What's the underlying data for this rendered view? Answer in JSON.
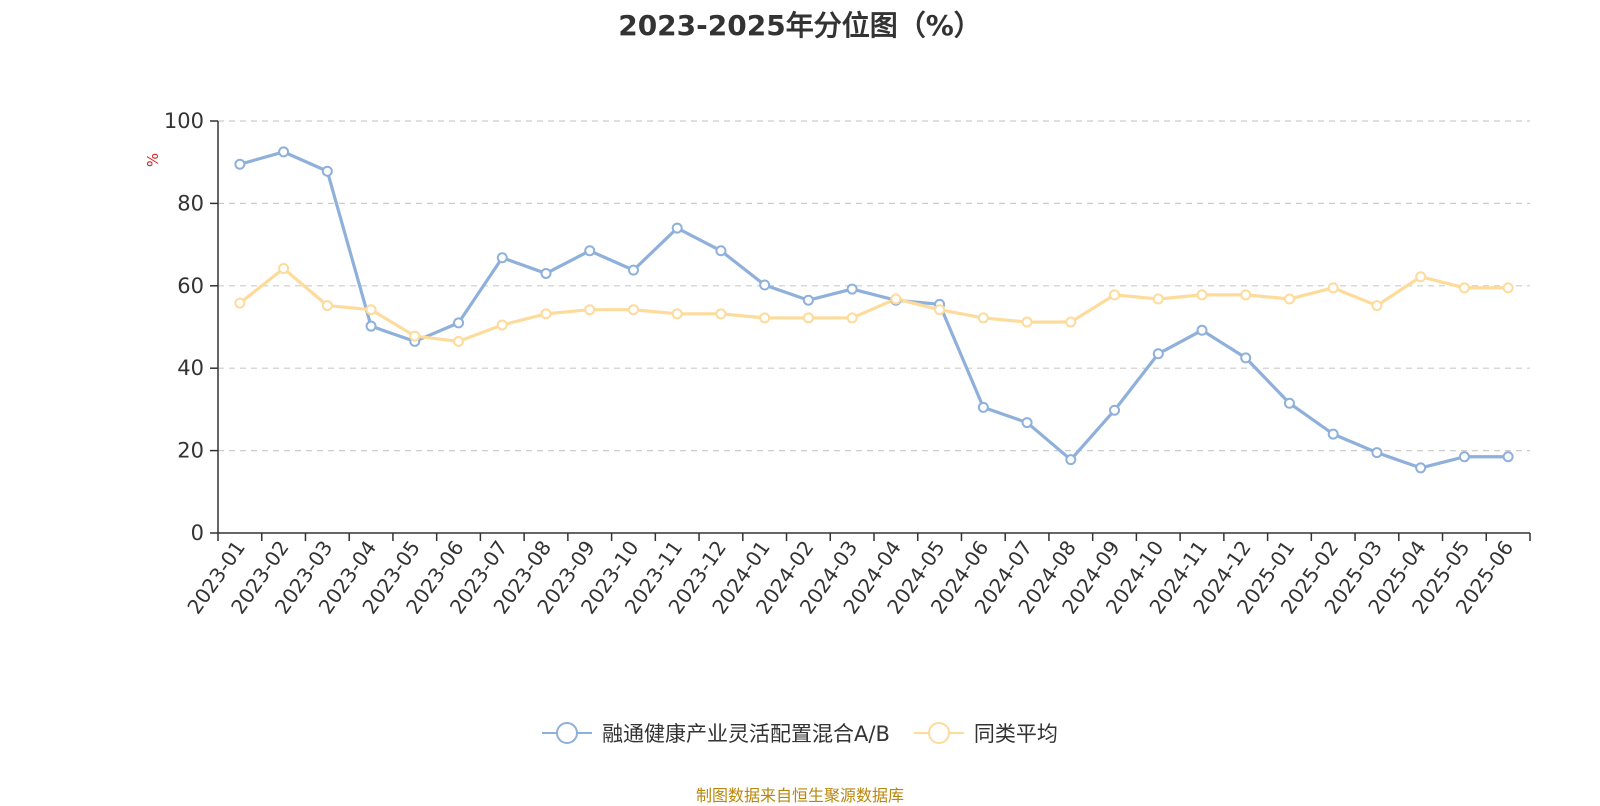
{
  "chart_data": {
    "type": "line",
    "title": "2023-2025年分位图（%）",
    "ylabel": "%",
    "xlabel": "",
    "ylim": [
      0,
      100
    ],
    "yticks": [
      0,
      20,
      40,
      60,
      80,
      100
    ],
    "grid": "horizontal dashed",
    "legend_position": "bottom-center",
    "categories": [
      "2023-01",
      "2023-02",
      "2023-03",
      "2023-04",
      "2023-05",
      "2023-06",
      "2023-07",
      "2023-08",
      "2023-09",
      "2023-10",
      "2023-11",
      "2023-12",
      "2024-01",
      "2024-02",
      "2024-03",
      "2024-04",
      "2024-05",
      "2024-06",
      "2024-07",
      "2024-08",
      "2024-09",
      "2024-10",
      "2024-11",
      "2024-12",
      "2025-01",
      "2025-02",
      "2025-03",
      "2025-04",
      "2025-05",
      "2025-06"
    ],
    "series": [
      {
        "name": "融通健康产业灵活配置混合A/B",
        "color": "#8eb0da",
        "values": [
          89.5,
          92.5,
          87.8,
          50.2,
          46.5,
          51.0,
          66.8,
          63.0,
          68.5,
          63.8,
          74.0,
          68.5,
          60.2,
          56.5,
          59.2,
          56.5,
          55.5,
          30.5,
          26.8,
          17.8,
          29.8,
          43.5,
          49.2,
          42.5,
          31.5,
          24.0,
          19.5,
          15.8,
          18.5,
          18.5
        ]
      },
      {
        "name": "同类平均",
        "color": "#fddb9b",
        "values": [
          55.8,
          64.2,
          55.2,
          54.2,
          47.8,
          46.5,
          50.5,
          53.2,
          54.2,
          54.2,
          53.2,
          53.2,
          52.2,
          52.2,
          52.2,
          56.8,
          54.2,
          52.2,
          51.2,
          51.2,
          57.8,
          56.8,
          57.8,
          57.8,
          56.8,
          59.5,
          55.2,
          62.2,
          59.5,
          59.5
        ]
      }
    ]
  },
  "source_note": "制图数据来自恒生聚源数据库"
}
